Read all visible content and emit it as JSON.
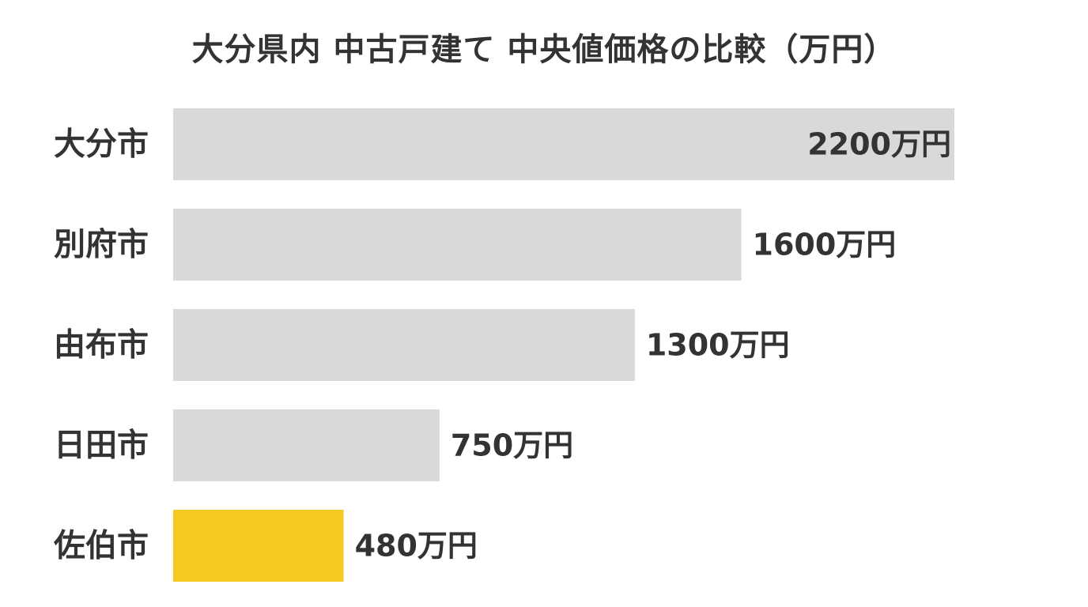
{
  "chart_data": {
    "type": "bar",
    "orientation": "horizontal",
    "title": "大分県内 中古戸建て 中央値価格の比較（万円）",
    "categories": [
      "大分市",
      "別府市",
      "由布市",
      "日田市",
      "佐伯市"
    ],
    "values": [
      2200,
      1600,
      1300,
      750,
      480
    ],
    "value_labels": [
      "2200万円",
      "1600万円",
      "1300万円",
      "750万円",
      "480万円"
    ],
    "xlim": [
      0,
      2200
    ],
    "grid": false,
    "legend": "none",
    "bar_color": "#d9d9d9",
    "highlight_color": "#f5c822",
    "highlight_category": "佐伯市",
    "value_label_inside_for_max": true
  }
}
